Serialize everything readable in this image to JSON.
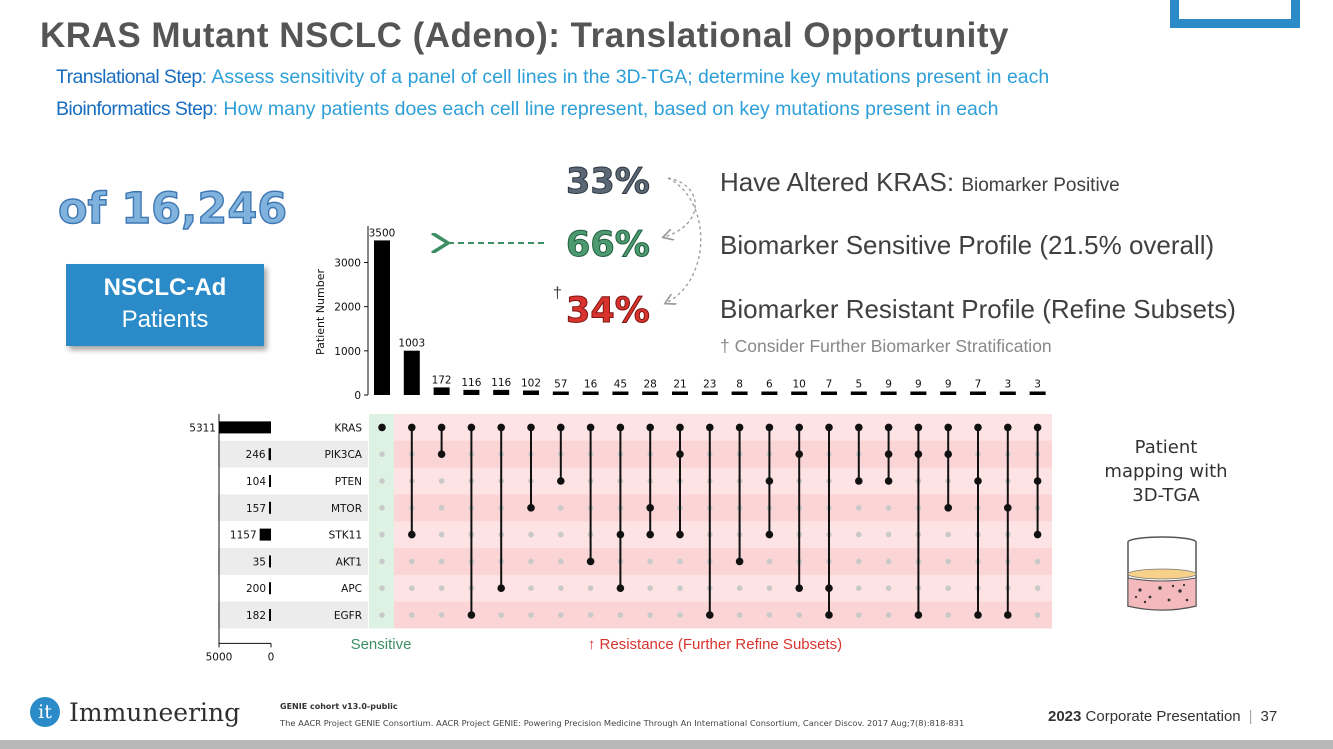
{
  "slide": {
    "title": "KRAS Mutant NSCLC (Adeno): Translational Opportunity",
    "translational_label": "Translational Step",
    "translational_text": ": Assess sensitivity of a panel of cell lines in the 3D-TGA; determine key mutations present in each",
    "bioinformatics_label": "Bioinformatics Step",
    "bioinformatics_text": ": How many patients does each cell line represent, based on key mutations present in each",
    "cohort_count": "of 16,246",
    "cohort_line1": "NSCLC-Ad",
    "cohort_line2": "Patients",
    "pct_altered": "33%",
    "pct_sensitive": "66%",
    "pct_resistant": "34%",
    "dagger": "†",
    "altered_text": "Have Altered KRAS: ",
    "altered_small": "Biomarker Positive",
    "sensitive_text": "Biomarker Sensitive Profile (21.5% overall)",
    "resistant_text": "Biomarker Resistant Profile (Refine Subsets)",
    "footnote": "† Consider Further Biomarker Stratification",
    "mapping_line1": "Patient",
    "mapping_line2": "mapping with",
    "mapping_line3": "3D-TGA",
    "logo_glyph": "it",
    "logo_name": "Immuneering",
    "cite_bold": "GENIE cohort v13.0-public",
    "cite_text": "The AACR Project GENIE Consortium. AACR Project GENIE: Powering Precision Medicine Through An International Consortium, Cancer Discov. 2017 Aug;7(8):818-831",
    "footer_year": "2023",
    "footer_text": " Corporate Presentation",
    "footer_sep": "|",
    "page_number": "37",
    "colors": {
      "brand_blue": "#2a8bc8",
      "sensitive_green": "#4d9a71",
      "resistant_red": "#d9332e",
      "resistant_band": "#fde3e3",
      "sensitive_band": "#ddf2e3"
    }
  },
  "chart_data": {
    "type": "bar",
    "subtype": "upset",
    "ylabel": "Patient Number",
    "ylim": [
      0,
      3600
    ],
    "y_ticks": [
      0,
      1000,
      2000,
      3000
    ],
    "intersection_values": [
      3500,
      1003,
      172,
      116,
      116,
      102,
      57,
      16,
      45,
      28,
      21,
      23,
      8,
      6,
      10,
      7,
      5,
      9,
      9,
      9,
      7,
      3,
      3
    ],
    "genes": [
      "KRAS",
      "PIK3CA",
      "PTEN",
      "MTOR",
      "STK11",
      "AKT1",
      "APC",
      "EGFR"
    ],
    "set_sizes": [
      5311,
      246,
      104,
      157,
      1157,
      35,
      200,
      182
    ],
    "set_size_axis": [
      "5000",
      "0"
    ],
    "set_size_range": [
      0,
      5311
    ],
    "intersections": [
      [
        "KRAS"
      ],
      [
        "KRAS",
        "STK11"
      ],
      [
        "KRAS",
        "PIK3CA"
      ],
      [
        "KRAS",
        "EGFR"
      ],
      [
        "KRAS",
        "APC"
      ],
      [
        "KRAS",
        "MTOR"
      ],
      [
        "KRAS",
        "PTEN"
      ],
      [
        "KRAS",
        "AKT1"
      ],
      [
        "KRAS",
        "STK11",
        "APC"
      ],
      [
        "KRAS",
        "MTOR",
        "STK11"
      ],
      [
        "KRAS",
        "PIK3CA",
        "STK11"
      ],
      [
        "KRAS",
        "EGFR"
      ],
      [
        "KRAS",
        "AKT1"
      ],
      [
        "KRAS",
        "PTEN",
        "STK11"
      ],
      [
        "KRAS",
        "PIK3CA",
        "APC"
      ],
      [
        "KRAS",
        "APC",
        "EGFR"
      ],
      [
        "KRAS",
        "PTEN"
      ],
      [
        "KRAS",
        "PIK3CA",
        "PTEN"
      ],
      [
        "KRAS",
        "PIK3CA",
        "EGFR"
      ],
      [
        "KRAS",
        "PIK3CA",
        "MTOR"
      ],
      [
        "KRAS",
        "PTEN",
        "EGFR"
      ],
      [
        "KRAS",
        "MTOR",
        "EGFR"
      ],
      [
        "KRAS",
        "PTEN",
        "STK11"
      ]
    ],
    "sensitive_label": "Sensitive",
    "resistance_label": "↑ Resistance (Further Refine Subsets)"
  }
}
